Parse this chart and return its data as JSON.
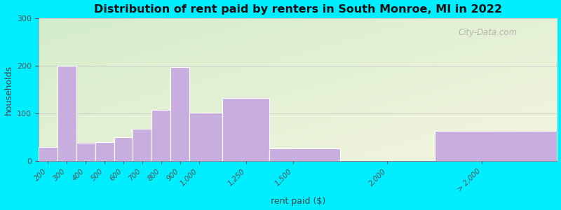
{
  "title": "Distribution of rent paid by renters in South Monroe, MI in 2022",
  "xlabel": "rent paid ($)",
  "ylabel": "households",
  "bar_color": "#c8aede",
  "bar_edge_color": "#ffffff",
  "background_outer": "#00eeff",
  "background_inner_left": "#d8f0d0",
  "background_inner_right": "#f0f8e8",
  "ylim": [
    0,
    300
  ],
  "yticks": [
    0,
    100,
    200,
    300
  ],
  "tick_labels": [
    "200",
    "300",
    "400",
    "500",
    "600",
    "700",
    "800",
    "900",
    "1,000",
    "1,250",
    "1,500",
    "2,000",
    "> 2,000"
  ],
  "values": [
    30,
    200,
    38,
    40,
    50,
    68,
    108,
    197,
    102,
    133,
    27,
    0,
    63
  ],
  "watermark": "City-Data.com",
  "bin_edges": [
    150,
    250,
    350,
    450,
    550,
    650,
    750,
    850,
    950,
    1125,
    1375,
    1750,
    2250,
    2900
  ],
  "tick_positions": [
    200,
    300,
    400,
    500,
    600,
    700,
    800,
    900,
    1000,
    1250,
    1500,
    2000,
    2500
  ],
  "xlim": [
    150,
    2900
  ]
}
